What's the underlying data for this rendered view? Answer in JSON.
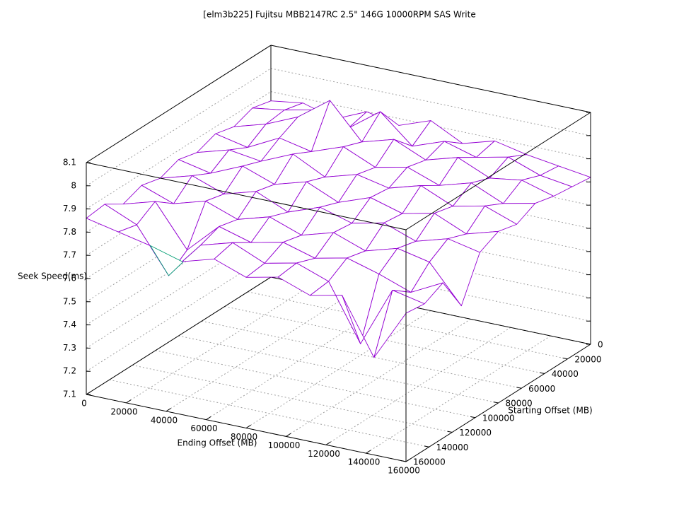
{
  "chart_data": {
    "type": "surface3d",
    "title": "[elm3b225] Fujitsu MBB2147RC 2.5\" 146G 10000RPM SAS Write",
    "xlabel": "Ending Offset (MB)",
    "ylabel": "Starting Offset (MB)",
    "zlabel": "Seek Speed(ms)",
    "x": [
      0,
      16000,
      32000,
      48000,
      64000,
      80000,
      96000,
      112000,
      128000,
      144000,
      160000
    ],
    "y": [
      0,
      16000,
      32000,
      48000,
      64000,
      80000,
      96000,
      112000,
      128000,
      144000,
      160000
    ],
    "z": [
      [
        7.86,
        7.88,
        7.84,
        7.9,
        7.87,
        7.92,
        7.85,
        7.89,
        7.86,
        7.84,
        7.82
      ],
      [
        7.88,
        7.9,
        7.93,
        7.88,
        7.98,
        7.86,
        7.91,
        7.87,
        7.9,
        7.85,
        7.83
      ],
      [
        7.85,
        7.89,
        7.95,
        8.05,
        7.9,
        7.94,
        7.88,
        7.92,
        7.86,
        7.88,
        7.84
      ],
      [
        7.87,
        7.84,
        7.91,
        7.88,
        7.93,
        7.87,
        7.9,
        7.85,
        7.89,
        7.83,
        7.86
      ],
      [
        7.84,
        7.88,
        7.86,
        7.92,
        7.85,
        7.89,
        7.86,
        7.9,
        7.84,
        7.87,
        7.82
      ],
      [
        7.86,
        7.83,
        7.89,
        7.84,
        7.88,
        7.82,
        7.87,
        7.83,
        7.86,
        7.8,
        7.84
      ],
      [
        7.83,
        7.87,
        7.82,
        7.86,
        7.8,
        7.85,
        7.81,
        7.84,
        7.79,
        7.83,
        7.8
      ],
      [
        7.85,
        7.8,
        7.84,
        7.79,
        7.83,
        7.78,
        7.82,
        7.77,
        7.81,
        7.78,
        7.62
      ],
      [
        7.82,
        7.86,
        7.68,
        7.81,
        7.77,
        7.8,
        7.76,
        7.79,
        7.75,
        7.7,
        7.77
      ],
      [
        7.87,
        7.81,
        7.62,
        7.78,
        7.82,
        7.76,
        7.79,
        7.74,
        7.5,
        7.76,
        7.73
      ],
      [
        7.86,
        7.83,
        7.8,
        7.76,
        7.8,
        7.75,
        7.78,
        7.73,
        7.76,
        7.52,
        7.74
      ]
    ],
    "top_color": "#9400d3",
    "bottom_color": "#009e73",
    "xlim": [
      0,
      160000
    ],
    "ylim": [
      0,
      160000
    ],
    "zlim": [
      7.1,
      8.1
    ],
    "xticks": [
      0,
      20000,
      40000,
      60000,
      80000,
      100000,
      120000,
      140000,
      160000
    ],
    "yticks": [
      0,
      20000,
      40000,
      60000,
      80000,
      100000,
      120000,
      140000,
      160000
    ],
    "zticks": [
      7.1,
      7.2,
      7.3,
      7.4,
      7.5,
      7.6,
      7.7,
      7.8,
      7.9,
      8,
      8.1
    ],
    "grid": true
  }
}
